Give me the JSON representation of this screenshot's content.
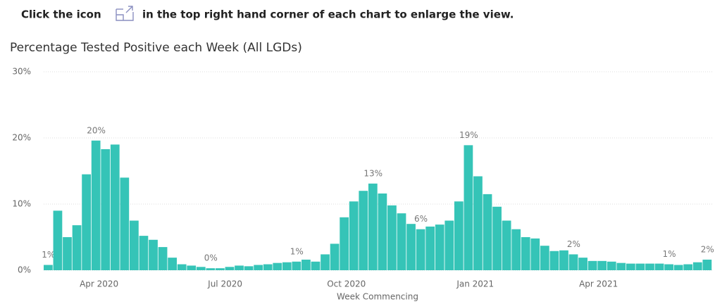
{
  "header": {
    "before_icon": "Click the icon",
    "after_icon": "in the top right hand corner of each chart to enlarge the view."
  },
  "chart_data": {
    "type": "bar",
    "title": "Percentage Tested Positive each Week (All LGDs)",
    "x_label": "Week Commencing",
    "color": "#35c4b7",
    "categories": [
      null,
      null,
      null,
      null,
      null,
      null,
      null,
      null,
      null,
      null,
      null,
      null,
      null,
      null,
      null,
      null,
      null,
      null,
      null,
      null,
      null,
      null,
      null,
      null,
      null,
      null,
      null,
      null,
      null,
      null,
      null,
      null,
      null,
      null,
      null,
      null,
      null,
      null,
      null,
      null,
      null,
      null,
      null,
      null,
      null,
      null,
      null,
      null,
      null,
      null,
      null,
      null,
      null,
      null,
      null,
      null,
      null,
      null,
      null,
      null,
      null,
      null,
      null,
      null,
      null,
      null,
      null,
      null,
      null,
      null
    ],
    "values": [
      0.8,
      9,
      5,
      6.8,
      14.5,
      19.6,
      18.3,
      19,
      14,
      7.5,
      5.2,
      4.6,
      3.5,
      1.9,
      0.9,
      0.7,
      0.5,
      0.3,
      0.3,
      0.5,
      0.7,
      0.6,
      0.8,
      0.9,
      1.1,
      1.2,
      1.3,
      1.6,
      1.3,
      2.4,
      4,
      8,
      10.4,
      12,
      13.1,
      11.6,
      9.8,
      8.6,
      7,
      6.2,
      6.6,
      6.9,
      7.5,
      10.4,
      18.9,
      14.2,
      11.5,
      9.6,
      7.5,
      6.2,
      5,
      4.8,
      3.7,
      2.9,
      3,
      2.4,
      1.9,
      1.4,
      1.4,
      1.3,
      1.1,
      1,
      1,
      1,
      1,
      0.9,
      0.8,
      0.9,
      1.2,
      1.6
    ],
    "value_labels": [
      "1%",
      null,
      null,
      null,
      null,
      "20%",
      null,
      null,
      null,
      null,
      null,
      null,
      null,
      null,
      null,
      null,
      null,
      "0%",
      null,
      null,
      null,
      null,
      null,
      null,
      null,
      null,
      "1%",
      null,
      null,
      null,
      null,
      null,
      null,
      null,
      "13%",
      null,
      null,
      null,
      null,
      "6%",
      null,
      null,
      null,
      null,
      "19%",
      null,
      null,
      null,
      null,
      null,
      null,
      null,
      null,
      null,
      null,
      "2%",
      null,
      null,
      null,
      null,
      null,
      null,
      null,
      null,
      null,
      "1%",
      null,
      null,
      null,
      "2%"
    ],
    "xlim": [
      0,
      70
    ],
    "xticks": [
      {
        "value": 5.8,
        "label": "Apr 2020"
      },
      {
        "value": 19,
        "label": "Jul 2020"
      },
      {
        "value": 31.7,
        "label": "Oct 2020"
      },
      {
        "value": 45.2,
        "label": "Jan 2021"
      },
      {
        "value": 58.1,
        "label": "Apr 2021"
      }
    ],
    "ylim": [
      0,
      30
    ],
    "yticks": [
      {
        "value": 0,
        "label": "0%"
      },
      {
        "value": 10,
        "label": "10%"
      },
      {
        "value": 20,
        "label": "20%"
      },
      {
        "value": 30,
        "label": "30%"
      }
    ],
    "grid": true
  }
}
